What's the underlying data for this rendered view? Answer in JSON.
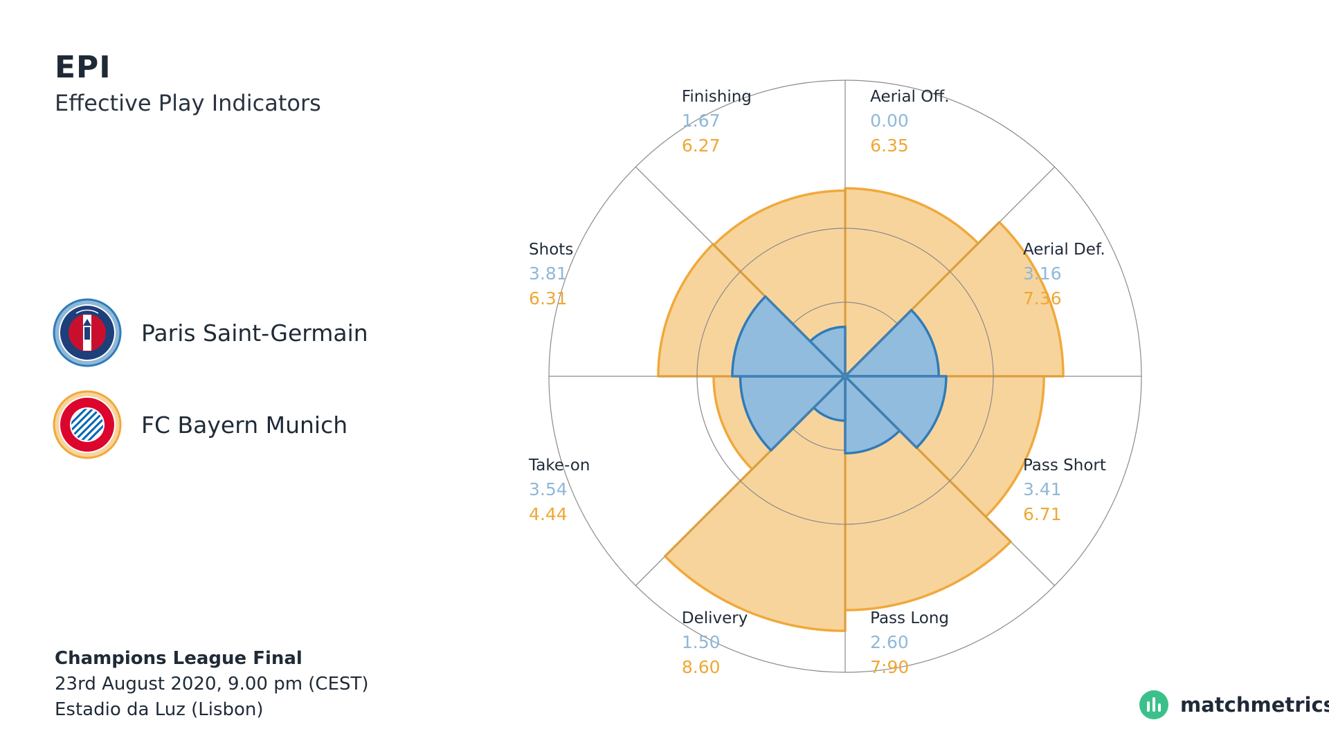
{
  "header": {
    "title": "EPI",
    "subtitle": "Effective Play Indicators"
  },
  "teams": [
    {
      "name": "Paris Saint-Germain",
      "badge_icon": "psg-crest-icon",
      "color": "#2f7bb8",
      "fill": "#92bcdd"
    },
    {
      "name": "FC Bayern Munich",
      "badge_icon": "bayern-crest-icon",
      "color": "#f0a93a",
      "fill": "#f8d49d"
    }
  ],
  "match": {
    "competition": "Champions League Final",
    "datetime": "23rd August 2020, 9.00 pm (CEST)",
    "venue": "Estadio da Luz (Lisbon)"
  },
  "brand": {
    "name": "matchmetrics",
    "color": "#3cc08a"
  },
  "chart_data": {
    "type": "polar-area",
    "rmax": 10,
    "gridlines": [
      2.5,
      5.0
    ],
    "categories": [
      "Aerial Off.",
      "Aerial Def.",
      "Pass Short",
      "Pass Long",
      "Delivery",
      "Take-on",
      "Shots",
      "Finishing"
    ],
    "series": [
      {
        "name": "Paris Saint-Germain",
        "values": [
          0.0,
          3.16,
          3.41,
          2.6,
          1.5,
          3.54,
          3.81,
          1.67
        ]
      },
      {
        "name": "FC Bayern Munich",
        "values": [
          6.35,
          7.36,
          6.71,
          7.9,
          8.6,
          4.44,
          6.31,
          6.27
        ]
      }
    ],
    "value_labels_1": [
      "0.00",
      "3.16",
      "3.41",
      "2.60",
      "1.50",
      "3.54",
      "3.81",
      "1.67"
    ],
    "value_labels_2": [
      "6.35",
      "7.36",
      "6.71",
      "7:90",
      "8.60",
      "4.44",
      "6.31",
      "6.27"
    ]
  }
}
